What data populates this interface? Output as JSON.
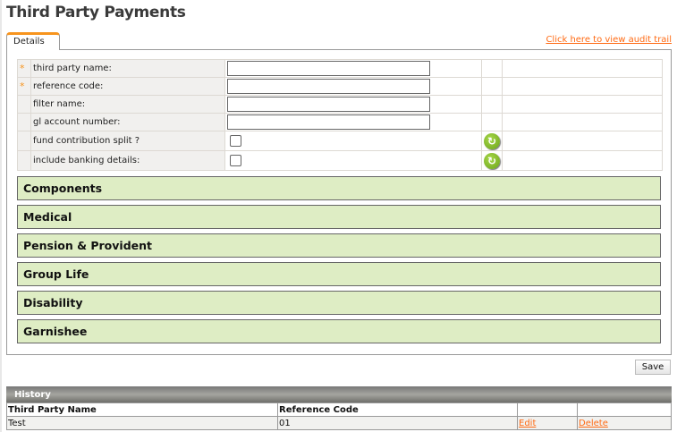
{
  "title": "Third Party Payments",
  "tab": "Details",
  "audit_link": "Click here to view audit trail",
  "fields": [
    {
      "label": "third party name:",
      "required": true,
      "type": "text",
      "value": ""
    },
    {
      "label": "reference code:",
      "required": true,
      "type": "text",
      "value": ""
    },
    {
      "label": "filter name:",
      "required": false,
      "type": "text",
      "value": ""
    },
    {
      "label": "gl account number:",
      "required": false,
      "type": "text",
      "value": ""
    },
    {
      "label": "fund contribution split ?",
      "required": false,
      "type": "checkbox",
      "checked": false,
      "icon": "refresh-icon"
    },
    {
      "label": "include banking details:",
      "required": false,
      "type": "checkbox",
      "checked": false,
      "icon": "refresh-icon"
    }
  ],
  "required_marker": "*",
  "sections": [
    "Components",
    "Medical",
    "Pension & Provident",
    "Group Life",
    "Disability",
    "Garnishee"
  ],
  "save_label": "Save",
  "history": {
    "title": "History",
    "columns": [
      "Third Party Name",
      "Reference Code",
      "",
      ""
    ],
    "rows": [
      {
        "name": "Test",
        "code": "01",
        "edit": "Edit",
        "delete": "Delete"
      }
    ]
  }
}
